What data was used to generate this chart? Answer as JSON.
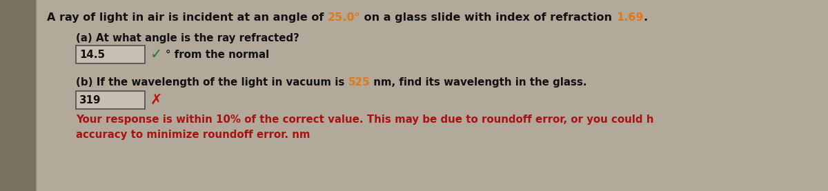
{
  "bg_color": "#b2a99a",
  "left_bar_color": "#7a7060",
  "text_color": "#111111",
  "highlight_orange": "#e07818",
  "check_green": "#2a7a2a",
  "cross_red": "#bb1111",
  "feedback_red": "#aa1111",
  "box_bg": "#c8bfb2",
  "box_border": "#555555",
  "part_a_answer": "14.5",
  "part_b_answer": "319",
  "part_a_unit": "° from the normal",
  "part_b_feedback": "Your response is within 10% of the correct value. This may be due to roundoff error, or you could h",
  "part_b_feedback2": "accuracy to minimize roundoff error. nm"
}
